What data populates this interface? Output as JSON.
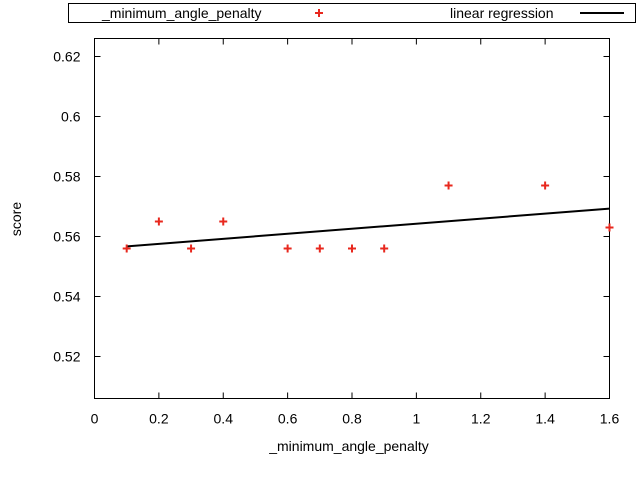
{
  "chart_data": {
    "type": "scatter",
    "xlabel": "_minimum_angle_penalty",
    "ylabel": "score",
    "xlim": [
      0,
      1.6
    ],
    "ylim": [
      0.506,
      0.626
    ],
    "x_ticks": [
      0,
      0.2,
      0.4,
      0.6,
      0.8,
      1,
      1.2,
      1.4,
      1.6
    ],
    "y_ticks": [
      0.52,
      0.54,
      0.56,
      0.58,
      0.6,
      0.62
    ],
    "x_tick_labels": [
      "0",
      "0.2",
      "0.4",
      "0.6",
      "0.8",
      "1",
      "1.2",
      "1.4",
      "1.6"
    ],
    "y_tick_labels": [
      "0.52",
      "0.54",
      "0.56",
      "0.58",
      "0.6",
      "0.62"
    ],
    "legend_placement": "top, outside plot",
    "series": [
      {
        "name": "_minimum_angle_penalty",
        "kind": "points",
        "marker": "plus",
        "color": "#e8281e",
        "x": [
          0.1,
          0.2,
          0.3,
          0.4,
          0.6,
          0.7,
          0.8,
          0.9,
          1.1,
          1.4,
          1.6
        ],
        "y": [
          0.556,
          0.565,
          0.556,
          0.565,
          0.556,
          0.556,
          0.556,
          0.556,
          0.577,
          0.577,
          0.563
        ]
      },
      {
        "name": "linear regression",
        "kind": "line",
        "color": "#000000",
        "x": [
          0.1,
          1.6
        ],
        "y": [
          0.5567,
          0.5693
        ]
      }
    ]
  }
}
